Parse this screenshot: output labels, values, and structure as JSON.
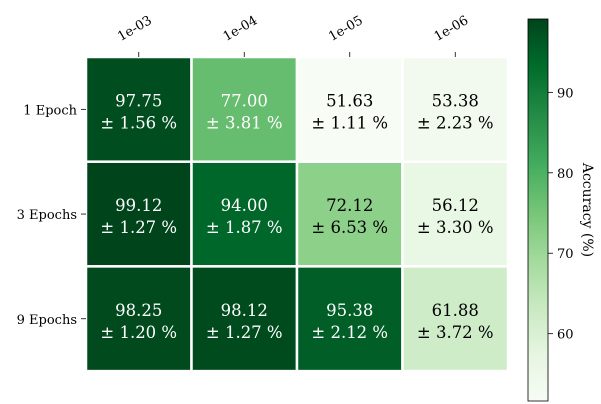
{
  "chart_data": {
    "type": "heatmap",
    "x_tick_labels": [
      "1e-03",
      "1e-04",
      "1e-05",
      "1e-06"
    ],
    "y_tick_labels": [
      "1 Epoch",
      "3 Epochs",
      "9 Epochs"
    ],
    "values": [
      [
        97.75,
        77.0,
        51.63,
        53.38
      ],
      [
        99.12,
        94.0,
        72.12,
        56.12
      ],
      [
        98.25,
        98.12,
        95.38,
        61.88
      ]
    ],
    "errors": [
      [
        1.56,
        3.81,
        1.11,
        2.23
      ],
      [
        1.27,
        1.87,
        6.53,
        3.3
      ],
      [
        1.2,
        1.27,
        2.12,
        3.72
      ]
    ],
    "cell_labels": [
      [
        "97.75",
        "77.00",
        "51.63",
        "53.38"
      ],
      [
        "99.12",
        "94.00",
        "72.12",
        "56.12"
      ],
      [
        "98.25",
        "98.12",
        "95.38",
        "61.88"
      ]
    ],
    "cell_sublabels": [
      [
        "± 1.56 %",
        "± 3.81 %",
        "± 1.11 %",
        "± 2.23 %"
      ],
      [
        "± 1.27 %",
        "± 1.87 %",
        "± 6.53 %",
        "± 3.30 %"
      ],
      [
        "± 1.20 %",
        "± 1.27 %",
        "± 2.12 %",
        "± 3.72 %"
      ]
    ],
    "colorbar": {
      "label": "Accuracy (%)",
      "range": [
        51.63,
        99.12
      ],
      "ticks": [
        60,
        70,
        80,
        90
      ],
      "tick_labels": [
        "60",
        "70",
        "80",
        "90"
      ],
      "colormap": "Greens"
    },
    "xlabel": "",
    "ylabel": "",
    "title": "",
    "grid": false,
    "x_tick_position": "top",
    "x_tick_rotation_deg": -30
  }
}
